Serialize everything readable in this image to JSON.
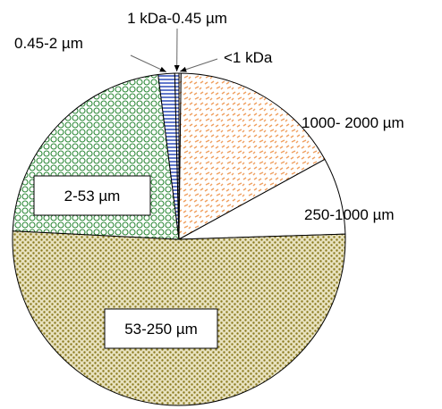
{
  "chart_data": {
    "type": "pie",
    "slices": [
      {
        "label": "<1 kDa",
        "value": 0.2
      },
      {
        "label": "1000- 2000 µm",
        "value": 16.8
      },
      {
        "label": "250-1000 µm",
        "value": 7.5
      },
      {
        "label": "53-250 µm",
        "value": 51.3
      },
      {
        "label": "2-53 µm",
        "value": 22.2
      },
      {
        "label": "0.45-2 µm",
        "value": 1.6
      },
      {
        "label": "1 kDa-0.45 µm",
        "value": 0.4
      }
    ],
    "legend": "none",
    "start_angle_deg": 0,
    "direction": "clockwise",
    "fills": {
      "<1 kDa": "pattern-orange-dashes",
      "1000- 2000 µm": "pattern-orange-dashes",
      "250-1000 µm": "#ffffff",
      "53-250 µm": "pattern-olive-dots",
      "2-53 µm": "pattern-green-circles",
      "0.45-2 µm": "pattern-blue-horizontal-lines",
      "1 kDa-0.45 µm": "pattern-blue-horizontal-lines"
    },
    "colors": {
      "orange": "#f0a060",
      "olive": "#8a7a1e",
      "green": "#2f8a3a",
      "blue": "#1f3fb5",
      "outline": "#000000"
    }
  }
}
